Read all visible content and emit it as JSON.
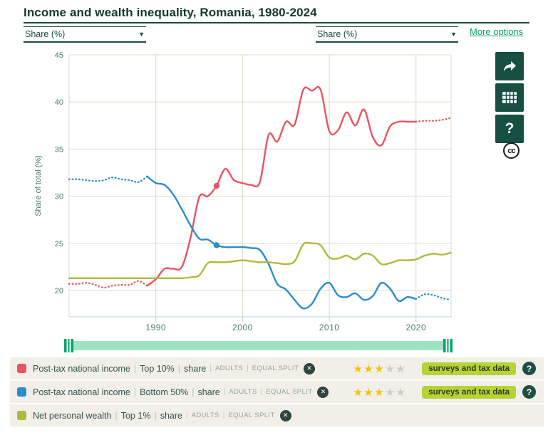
{
  "header": {
    "title": "Income and wealth inequality, Romania, 1980-2024"
  },
  "controls": {
    "left_indicator": "Share (%)",
    "right_indicator": "Share (%)",
    "dropdown_arrow": "▼",
    "more_options_label": "More options"
  },
  "toolbar": {
    "share_icon": "share-arrow",
    "table_icon": "data-table",
    "help_label": "?",
    "cc_label": "cc"
  },
  "chart_data": {
    "type": "line",
    "title": "Income and wealth inequality, Romania, 1980-2024",
    "ylabel": "Share of total (%)",
    "xlabel": "",
    "grid": true,
    "x_start": 1980,
    "xlim": [
      1980,
      2024
    ],
    "ylim": [
      17,
      45
    ],
    "x_ticks": [
      1990,
      2000,
      2010,
      2020
    ],
    "y_ticks": [
      45,
      40,
      35,
      30,
      25,
      20
    ],
    "series": [
      {
        "name": "Post-tax national income | Top 10% | share",
        "color": "#e85460",
        "dotted_ranges": [
          [
            1980,
            1989
          ],
          [
            2020,
            2024
          ]
        ],
        "marker": {
          "year": 1997,
          "value": 31.1
        },
        "values": [
          20.7,
          20.7,
          20.8,
          20.6,
          20.3,
          20.5,
          20.6,
          20.6,
          21.0,
          20.5,
          21.2,
          22.3,
          22.3,
          22.5,
          25.6,
          29.9,
          30.0,
          31.1,
          32.9,
          31.7,
          31.4,
          31.2,
          31.5,
          36.5,
          35.8,
          37.9,
          37.6,
          41.3,
          41.2,
          41.3,
          36.9,
          37.0,
          38.9,
          37.5,
          39.2,
          36.3,
          35.4,
          37.4,
          37.9,
          37.9,
          37.9,
          38.0,
          38.0,
          38.1,
          38.3
        ]
      },
      {
        "name": "Post-tax national income | Bottom 50% | share",
        "color": "#2b8ccb",
        "dotted_ranges": [
          [
            1980,
            1989
          ],
          [
            2020,
            2024
          ]
        ],
        "marker": {
          "year": 1997,
          "value": 24.8
        },
        "values": [
          31.8,
          31.8,
          31.7,
          31.6,
          31.7,
          32.0,
          31.8,
          31.7,
          31.5,
          32.1,
          31.4,
          31.2,
          30.2,
          28.6,
          26.9,
          25.5,
          25.4,
          24.8,
          24.6,
          24.6,
          24.6,
          24.5,
          24.3,
          22.8,
          20.7,
          20.1,
          19.0,
          18.1,
          18.6,
          20.2,
          20.8,
          19.5,
          19.3,
          19.7,
          19.0,
          19.4,
          20.8,
          20.2,
          18.9,
          19.3,
          19.1,
          19.6,
          19.5,
          19.2,
          19.0
        ]
      },
      {
        "name": "Net personal wealth | Top 1% | share",
        "color": "#aeba3a",
        "dotted_ranges": [],
        "marker": null,
        "values": [
          21.3,
          21.3,
          21.3,
          21.3,
          21.3,
          21.3,
          21.3,
          21.3,
          21.3,
          21.3,
          21.3,
          21.3,
          21.3,
          21.3,
          21.4,
          21.6,
          22.9,
          23.0,
          23.0,
          23.1,
          23.2,
          23.1,
          23.0,
          23.0,
          22.9,
          22.8,
          23.1,
          24.9,
          25.0,
          24.8,
          23.5,
          23.4,
          23.7,
          23.3,
          23.9,
          23.7,
          22.8,
          22.9,
          23.2,
          23.2,
          23.3,
          23.7,
          23.9,
          23.8,
          24.0
        ]
      }
    ]
  },
  "legend": {
    "separator": "|",
    "remove_icon": "✕",
    "help_icon": "?",
    "star_full_color": "#f2c200",
    "star_empty_color": "#cbcbcb",
    "rows": [
      {
        "parts": [
          "Post-tax national income",
          "Top 10%",
          "share"
        ],
        "tags": [
          "ADULTS",
          "EQUAL SPLIT"
        ],
        "rating": 3,
        "rating_max": 5,
        "badge": "surveys and tax data",
        "has_help": true
      },
      {
        "parts": [
          "Post-tax national income",
          "Bottom 50%",
          "share"
        ],
        "tags": [
          "ADULTS",
          "EQUAL SPLIT"
        ],
        "rating": 3,
        "rating_max": 5,
        "badge": "surveys and tax data",
        "has_help": true
      },
      {
        "parts": [
          "Net personal wealth",
          "Top 1%",
          "share"
        ],
        "tags": [
          "ADULTS",
          "EQUAL SPLIT"
        ],
        "rating": null,
        "rating_max": 5,
        "badge": null,
        "has_help": false
      }
    ]
  }
}
